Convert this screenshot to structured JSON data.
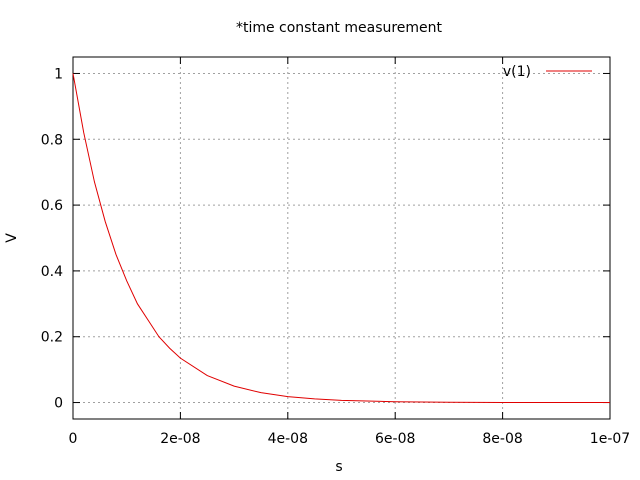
{
  "chart_data": {
    "type": "line",
    "title": "*time constant measurement",
    "xlabel": "s",
    "ylabel": "V",
    "xlim": [
      0,
      1e-07
    ],
    "ylim": [
      -0.05,
      1.05
    ],
    "grid": true,
    "legend_position": "top-right",
    "x_ticks": [
      {
        "value": 0,
        "label": "0"
      },
      {
        "value": 2e-08,
        "label": "2e-08"
      },
      {
        "value": 4e-08,
        "label": "4e-08"
      },
      {
        "value": 6e-08,
        "label": "6e-08"
      },
      {
        "value": 8e-08,
        "label": "8e-08"
      },
      {
        "value": 1e-07,
        "label": "1e-07"
      }
    ],
    "y_ticks": [
      {
        "value": 0,
        "label": "0"
      },
      {
        "value": 0.2,
        "label": "0.2"
      },
      {
        "value": 0.4,
        "label": "0.4"
      },
      {
        "value": 0.6,
        "label": "0.6"
      },
      {
        "value": 0.8,
        "label": "0.8"
      },
      {
        "value": 1,
        "label": "1"
      }
    ],
    "series": [
      {
        "name": "v(1)",
        "color": "#e00000",
        "x": [
          0,
          2e-09,
          4e-09,
          6e-09,
          8e-09,
          1e-08,
          1.2e-08,
          1.4e-08,
          1.6e-08,
          1.8e-08,
          2e-08,
          2.5e-08,
          3e-08,
          3.5e-08,
          4e-08,
          4.5e-08,
          5e-08,
          6e-08,
          7e-08,
          8e-08,
          9e-08,
          1e-07
        ],
        "y": [
          1.0,
          0.82,
          0.67,
          0.55,
          0.45,
          0.37,
          0.3,
          0.25,
          0.2,
          0.165,
          0.135,
          0.082,
          0.05,
          0.03,
          0.018,
          0.011,
          0.0067,
          0.0025,
          0.0009,
          0.0003,
          0.0001,
          0.0
        ]
      }
    ]
  }
}
